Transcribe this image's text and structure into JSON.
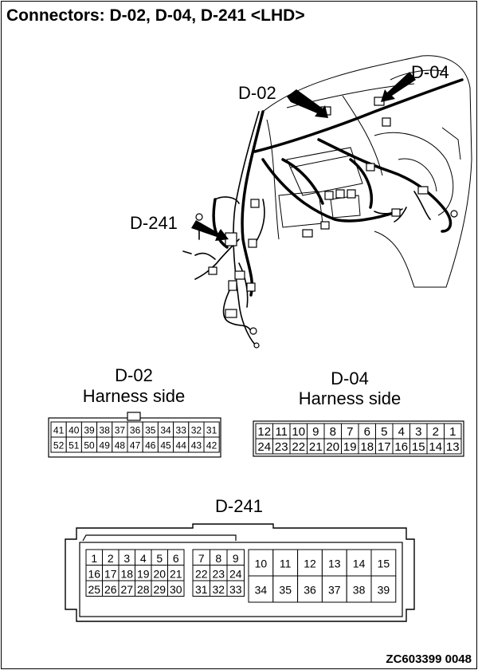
{
  "title": "Connectors: D-02, D-04, D-241 <LHD>",
  "callouts": {
    "d02": "D-02",
    "d04": "D-04",
    "d241": "D-241"
  },
  "d02": {
    "name": "D-02",
    "side": "Harness side",
    "row1": [
      "41",
      "40",
      "39",
      "38",
      "37",
      "36",
      "35",
      "34",
      "33",
      "32",
      "31"
    ],
    "row2": [
      "52",
      "51",
      "50",
      "49",
      "48",
      "47",
      "46",
      "45",
      "44",
      "43",
      "42"
    ]
  },
  "d04": {
    "name": "D-04",
    "side": "Harness side",
    "row1": [
      "12",
      "11",
      "10",
      "9",
      "8",
      "7",
      "6",
      "5",
      "4",
      "3",
      "2",
      "1"
    ],
    "row2": [
      "24",
      "23",
      "22",
      "21",
      "20",
      "19",
      "18",
      "17",
      "16",
      "15",
      "14",
      "13"
    ]
  },
  "d241": {
    "name": "D-241",
    "left_rows": [
      [
        "1",
        "2",
        "3",
        "4",
        "5",
        "6"
      ],
      [
        "16",
        "17",
        "18",
        "19",
        "20",
        "21"
      ],
      [
        "25",
        "26",
        "27",
        "28",
        "29",
        "30"
      ]
    ],
    "mid_rows": [
      [
        "7",
        "8",
        "9"
      ],
      [
        "22",
        "23",
        "24"
      ],
      [
        "31",
        "32",
        "33"
      ]
    ],
    "right_rows": [
      [
        "10",
        "11",
        "12",
        "13",
        "14",
        "15"
      ],
      [
        "34",
        "35",
        "36",
        "37",
        "38",
        "39"
      ]
    ]
  },
  "code": "ZC603399 0048"
}
